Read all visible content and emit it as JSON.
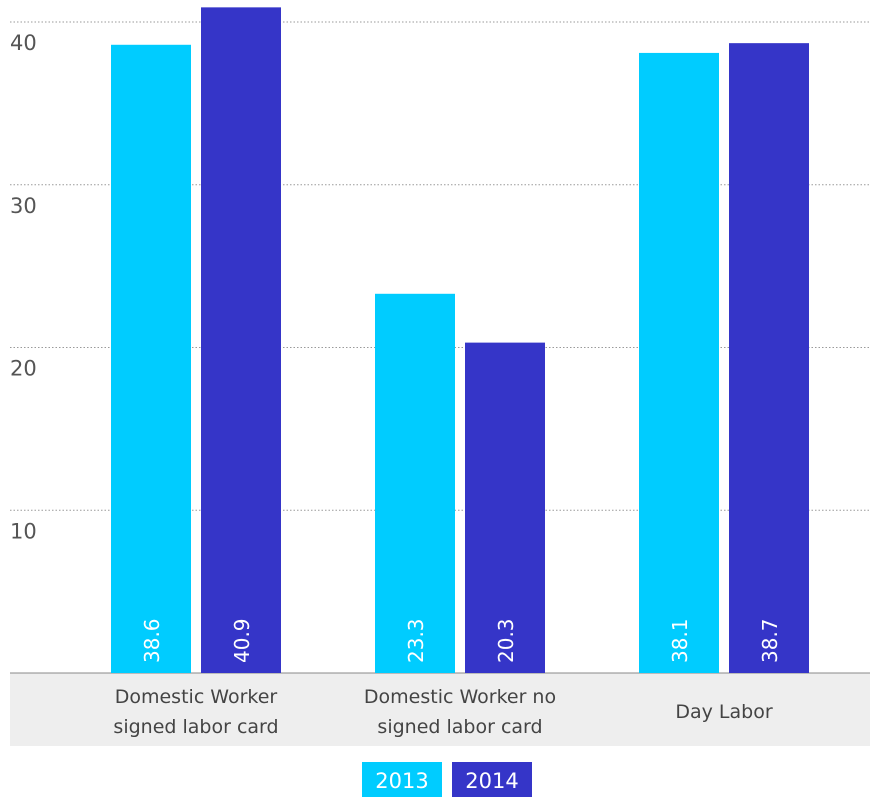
{
  "chart_data": {
    "type": "bar",
    "categories": [
      [
        "Domestic Worker",
        "signed labor card"
      ],
      [
        "Domestic Worker no",
        "signed labor card"
      ],
      [
        "Day Labor"
      ]
    ],
    "series": [
      {
        "name": "2013",
        "color": "#00ccff",
        "values": [
          38.6,
          23.3,
          38.1
        ],
        "labels": [
          "38.6",
          "23.3",
          "38.1"
        ]
      },
      {
        "name": "2014",
        "color": "#3535c8",
        "values": [
          40.9,
          20.3,
          38.7
        ],
        "labels": [
          "40.9",
          "20.3",
          "38.7"
        ]
      }
    ],
    "title": "",
    "xlabel": "",
    "ylabel": "",
    "ylim": [
      0,
      40
    ],
    "yticks": [
      "0",
      "10",
      "20",
      "30",
      "40"
    ],
    "grid": true,
    "legend_position": "bottom-center"
  }
}
